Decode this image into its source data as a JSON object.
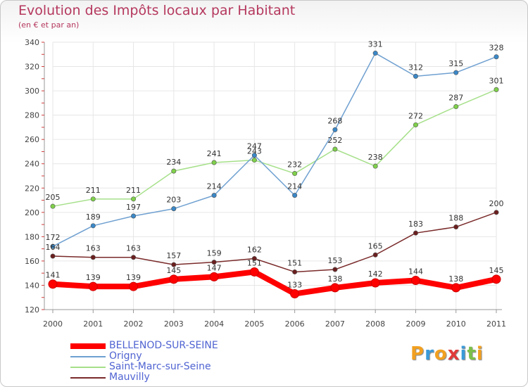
{
  "header": {
    "title": "Evolution des Impôts locaux par Habitant",
    "subtitle": "(en € et par an)"
  },
  "logo": {
    "text": "Proxiti"
  },
  "colors": {
    "title": "#b5385e",
    "legend_text": "#5064d2",
    "grid": "#e6e6e6"
  },
  "chart_data": {
    "type": "line",
    "title": "Evolution des Impôts locaux par Habitant",
    "subtitle": "(en € et par an)",
    "x": [
      "2000",
      "2001",
      "2002",
      "2003",
      "2004",
      "2005",
      "2006",
      "2007",
      "2008",
      "2009",
      "2010",
      "2011"
    ],
    "ylim": [
      120,
      340
    ],
    "yticks": [
      120,
      140,
      160,
      180,
      200,
      220,
      240,
      260,
      280,
      300,
      320,
      340
    ],
    "grid": true,
    "legend_position": "bottom-left",
    "series": [
      {
        "name": "BELLENOD-SUR-SEINE",
        "color": "#ff0000",
        "marker_color": "#ff0000",
        "emphasis": true,
        "values": [
          141,
          139,
          139,
          145,
          147,
          151,
          133,
          138,
          142,
          144,
          138,
          145
        ]
      },
      {
        "name": "Origny",
        "color": "#6fa0d0",
        "marker_color": "#3a88c8",
        "values": [
          172,
          189,
          197,
          203,
          214,
          247,
          214,
          268,
          331,
          312,
          315,
          328
        ]
      },
      {
        "name": "Saint-Marc-sur-Seine",
        "color": "#a6e08a",
        "marker_color": "#7fd04a",
        "values": [
          205,
          211,
          211,
          234,
          241,
          243,
          232,
          252,
          238,
          272,
          287,
          301
        ]
      },
      {
        "name": "Mauvilly",
        "color": "#7a2a2a",
        "marker_color": "#6b1f1f",
        "values": [
          164,
          163,
          163,
          157,
          159,
          162,
          151,
          153,
          165,
          183,
          188,
          200
        ]
      }
    ]
  }
}
